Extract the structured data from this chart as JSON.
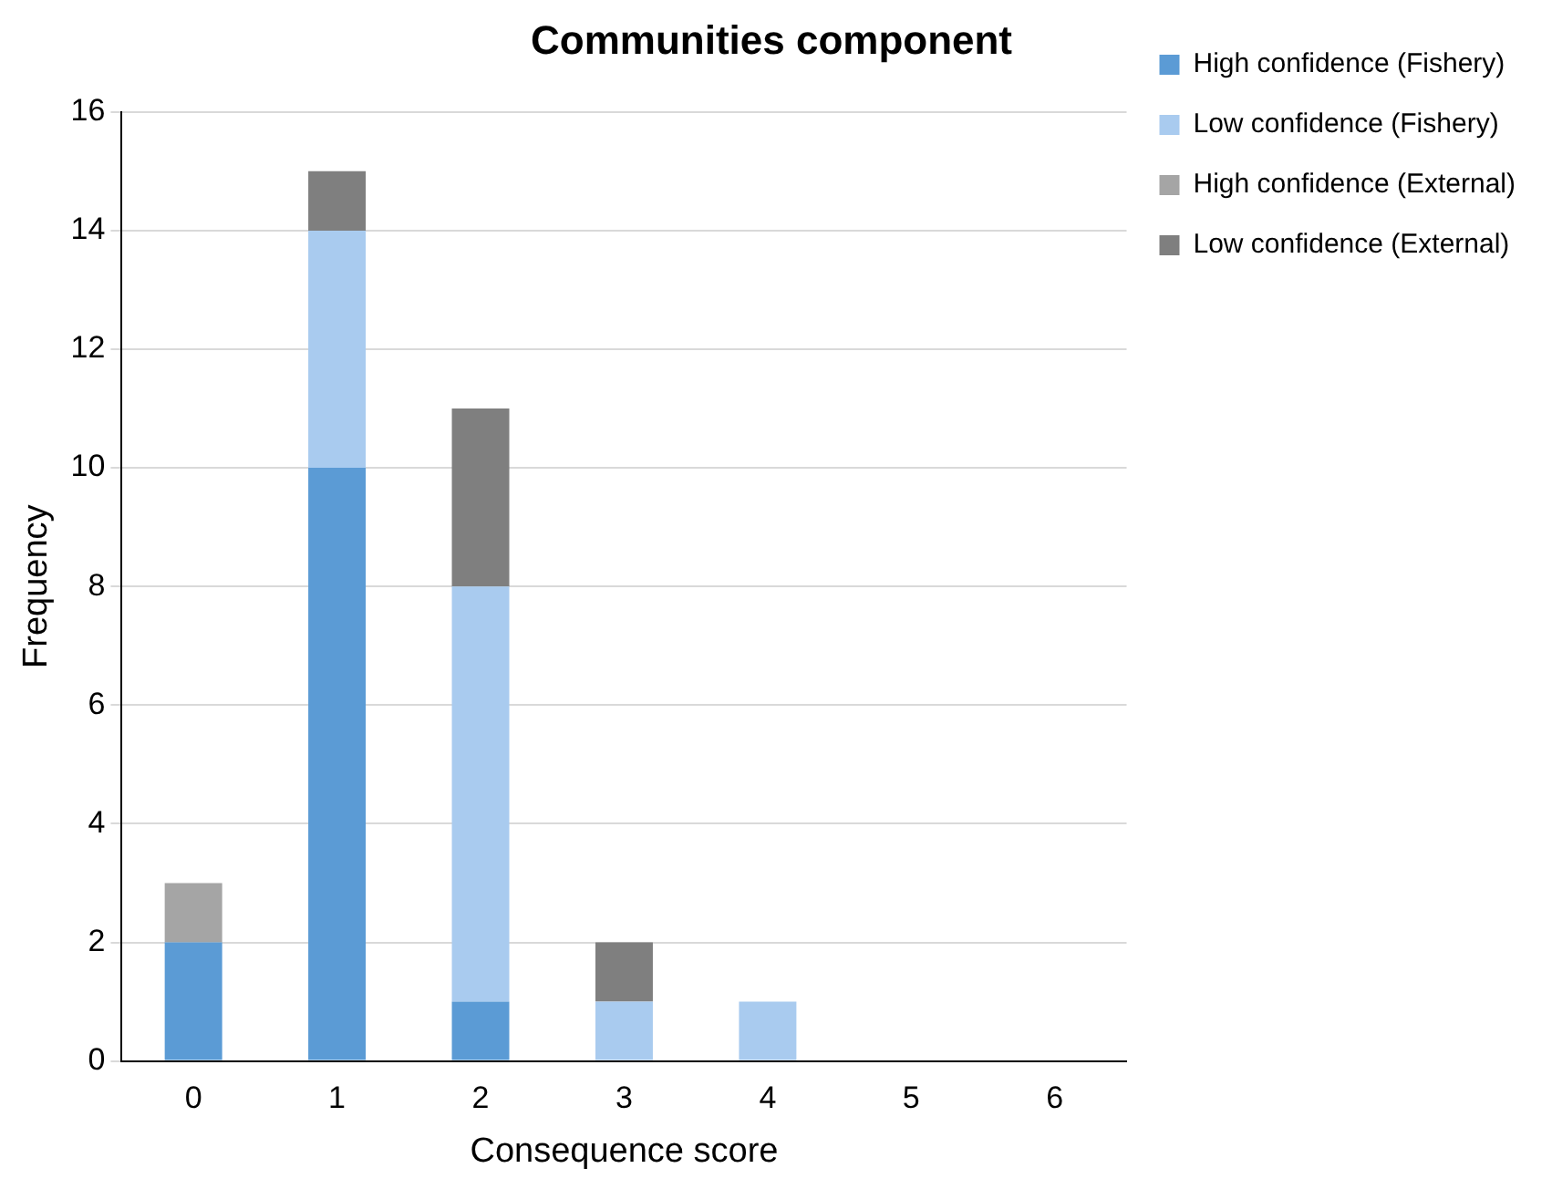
{
  "chart_data": {
    "type": "bar",
    "title": "Communities component",
    "xlabel": "Consequence score",
    "ylabel": "Frequency",
    "categories": [
      "0",
      "1",
      "2",
      "3",
      "4",
      "5",
      "6"
    ],
    "series": [
      {
        "name": "High confidence (Fishery)",
        "color": "#5b9bd5",
        "values": [
          2,
          10,
          1,
          0,
          0,
          0,
          0
        ]
      },
      {
        "name": "Low confidence (Fishery)",
        "color": "#a9cbef",
        "values": [
          0,
          4,
          7,
          1,
          1,
          0,
          0
        ]
      },
      {
        "name": "High confidence (External)",
        "color": "#a5a5a5",
        "values": [
          1,
          0,
          0,
          0,
          0,
          0,
          0
        ]
      },
      {
        "name": "Low confidence (External)",
        "color": "#7f7f7f",
        "values": [
          0,
          1,
          3,
          1,
          0,
          0,
          0
        ]
      }
    ],
    "stacked": true,
    "ylim": [
      0,
      16
    ],
    "yticks": [
      0,
      2,
      4,
      6,
      8,
      10,
      12,
      14,
      16
    ],
    "grid": "y",
    "legend": "right"
  }
}
